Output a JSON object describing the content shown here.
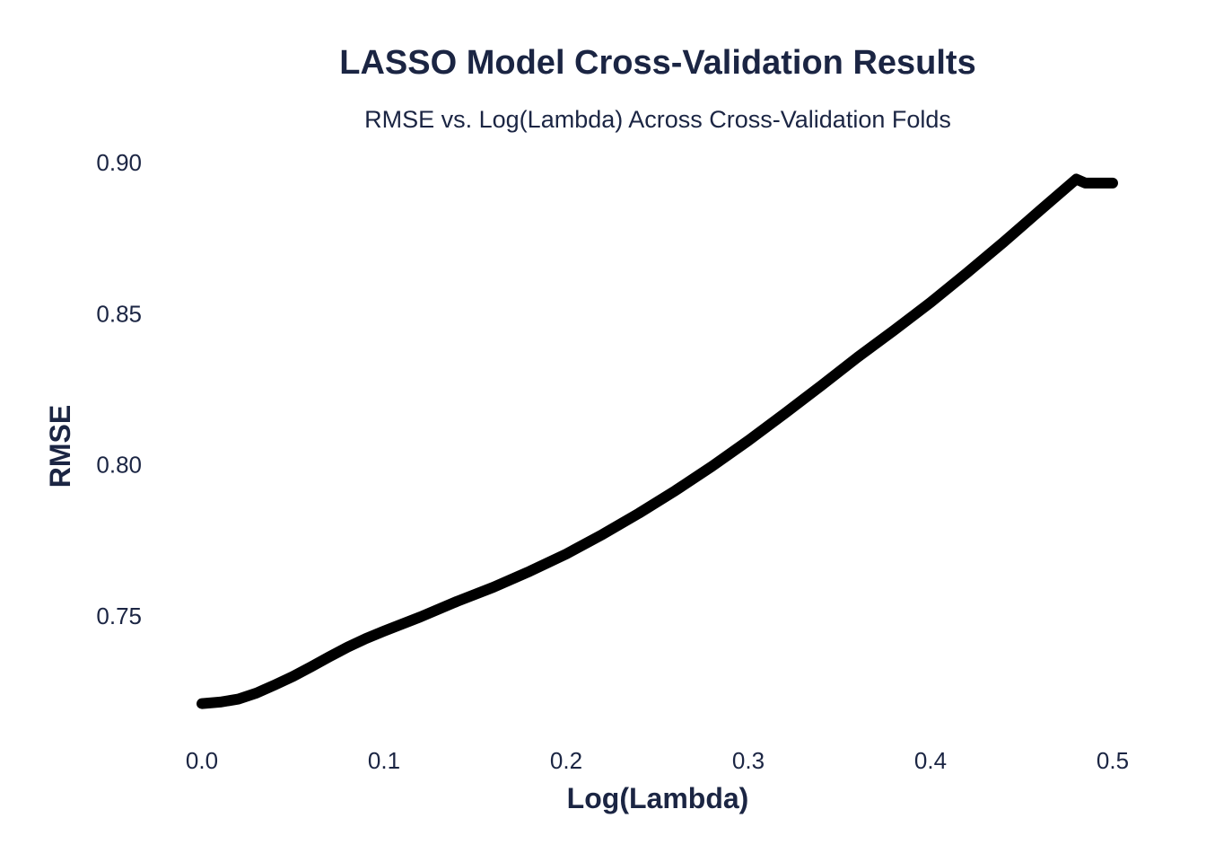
{
  "chart_data": {
    "type": "line",
    "title": "LASSO Model Cross-Validation Results",
    "subtitle": "RMSE vs. Log(Lambda) Across Cross-Validation Folds",
    "xlabel": "Log(Lambda)",
    "ylabel": "RMSE",
    "xlim": [
      0.0,
      0.5
    ],
    "ylim": [
      0.72,
      0.9
    ],
    "x_ticks": [
      "0.0",
      "0.1",
      "0.2",
      "0.3",
      "0.4",
      "0.5"
    ],
    "x_tick_values": [
      0.0,
      0.1,
      0.2,
      0.3,
      0.4,
      0.5
    ],
    "y_ticks": [
      "0.75",
      "0.80",
      "0.85",
      "0.90"
    ],
    "y_tick_values": [
      0.75,
      0.8,
      0.85,
      0.9
    ],
    "grid": false,
    "line_color": "#000000",
    "text_color": "#1b2543",
    "series": [
      {
        "x": [
          0.0,
          0.01,
          0.02,
          0.03,
          0.04,
          0.05,
          0.06,
          0.07,
          0.08,
          0.09,
          0.1,
          0.12,
          0.14,
          0.16,
          0.18,
          0.2,
          0.22,
          0.24,
          0.26,
          0.28,
          0.3,
          0.32,
          0.34,
          0.36,
          0.38,
          0.4,
          0.42,
          0.44,
          0.46,
          0.48,
          0.485,
          0.49,
          0.5
        ],
        "y": [
          0.721,
          0.7215,
          0.7225,
          0.7245,
          0.7272,
          0.73,
          0.7332,
          0.7365,
          0.7397,
          0.7425,
          0.745,
          0.7497,
          0.7548,
          0.7595,
          0.7648,
          0.7705,
          0.777,
          0.784,
          0.7915,
          0.7995,
          0.808,
          0.817,
          0.8262,
          0.8356,
          0.8445,
          0.8537,
          0.8635,
          0.8736,
          0.8841,
          0.8945,
          0.8932,
          0.8932,
          0.8932
        ]
      }
    ]
  }
}
